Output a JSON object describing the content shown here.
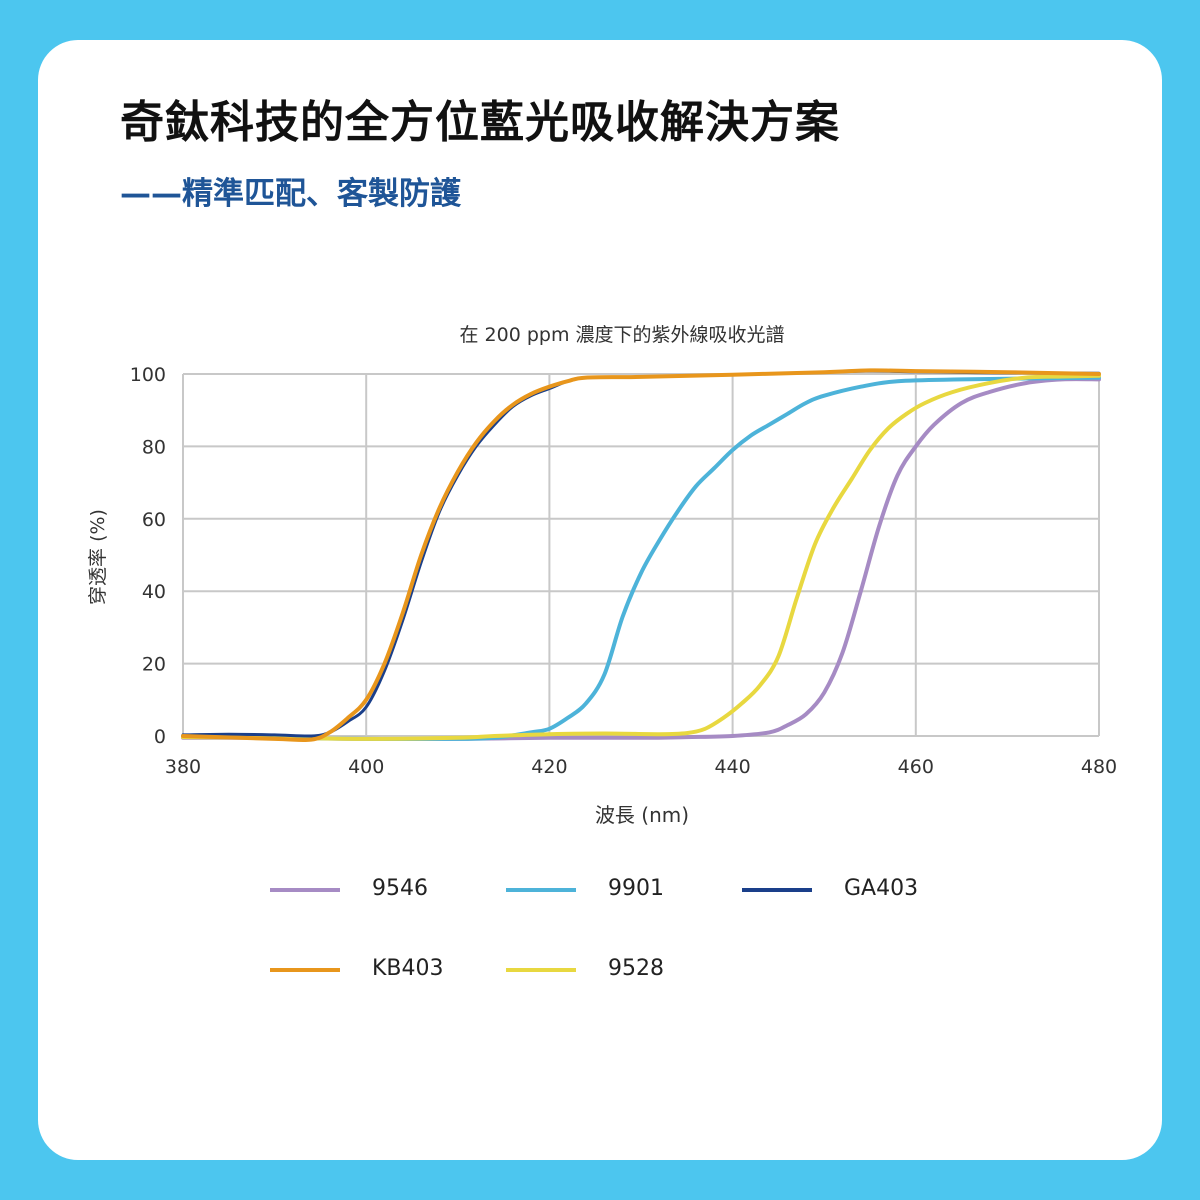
{
  "header": {
    "title": "奇鈦科技的全方位藍光吸收解決方案",
    "subtitle": "——精準匹配、客製防護"
  },
  "colors": {
    "background": "#4cc6ef",
    "card": "#ffffff",
    "title": "#111111",
    "subtitle": "#1f5597",
    "grid": "#c8c8c8"
  },
  "chart_data": {
    "type": "line",
    "title": "在 200 ppm 濃度下的紫外線吸收光譜",
    "xlabel": "波長 (nm)",
    "ylabel": "穿透率 (%)",
    "xlim": [
      380,
      480
    ],
    "ylim": [
      0,
      100
    ],
    "x_ticks": [
      "380",
      "400",
      "420",
      "440",
      "460",
      "480"
    ],
    "y_ticks": [
      "0",
      "20",
      "40",
      "60",
      "80",
      "100"
    ],
    "grid": true,
    "legend_position": "bottom",
    "series": [
      {
        "name": "9546",
        "color": "#a68bc4",
        "points": [
          [
            380,
            -0.5
          ],
          [
            390,
            -0.5
          ],
          [
            400,
            -0.8
          ],
          [
            410,
            -0.8
          ],
          [
            420,
            -0.5
          ],
          [
            430,
            -0.5
          ],
          [
            435,
            -0.3
          ],
          [
            440,
            0
          ],
          [
            444,
            1
          ],
          [
            446,
            3
          ],
          [
            448,
            6
          ],
          [
            450,
            12
          ],
          [
            452,
            23
          ],
          [
            454,
            40
          ],
          [
            456,
            58
          ],
          [
            458,
            72
          ],
          [
            460,
            80
          ],
          [
            462,
            86
          ],
          [
            465,
            92
          ],
          [
            468,
            95
          ],
          [
            472,
            97.5
          ],
          [
            476,
            98.5
          ],
          [
            480,
            98.5
          ]
        ]
      },
      {
        "name": "9901",
        "color": "#4db3d9",
        "points": [
          [
            380,
            0
          ],
          [
            390,
            -0.5
          ],
          [
            400,
            -0.8
          ],
          [
            410,
            -0.8
          ],
          [
            414,
            -0.5
          ],
          [
            418,
            1
          ],
          [
            420,
            2
          ],
          [
            422,
            5
          ],
          [
            424,
            9
          ],
          [
            426,
            17
          ],
          [
            428,
            33
          ],
          [
            430,
            45
          ],
          [
            432,
            54
          ],
          [
            434,
            62
          ],
          [
            436,
            69
          ],
          [
            438,
            74
          ],
          [
            440,
            79
          ],
          [
            442,
            83
          ],
          [
            444,
            86
          ],
          [
            446,
            89
          ],
          [
            448,
            92
          ],
          [
            450,
            94
          ],
          [
            454,
            96.5
          ],
          [
            458,
            98
          ],
          [
            465,
            98.5
          ],
          [
            480,
            99
          ]
        ]
      },
      {
        "name": "GA403",
        "color": "#1a3f8a",
        "points": [
          [
            380,
            0.3
          ],
          [
            385,
            0.5
          ],
          [
            390,
            0.3
          ],
          [
            394,
            0
          ],
          [
            396,
            1
          ],
          [
            398,
            4
          ],
          [
            400,
            8
          ],
          [
            402,
            18
          ],
          [
            404,
            32
          ],
          [
            406,
            48
          ],
          [
            408,
            62
          ],
          [
            410,
            72
          ],
          [
            412,
            80
          ],
          [
            414,
            86
          ],
          [
            416,
            91
          ],
          [
            418,
            94
          ],
          [
            420,
            96
          ],
          [
            422,
            98
          ],
          [
            424,
            99
          ],
          [
            430,
            99.2
          ],
          [
            440,
            99.8
          ],
          [
            450,
            100.5
          ],
          [
            455,
            100.8
          ],
          [
            460,
            100.6
          ],
          [
            470,
            100.3
          ],
          [
            480,
            100.2
          ]
        ]
      },
      {
        "name": "KB403",
        "color": "#e8961c",
        "points": [
          [
            380,
            0
          ],
          [
            390,
            -0.8
          ],
          [
            394,
            -1
          ],
          [
            396,
            1
          ],
          [
            398,
            5
          ],
          [
            400,
            10
          ],
          [
            402,
            20
          ],
          [
            404,
            34
          ],
          [
            406,
            50
          ],
          [
            408,
            63
          ],
          [
            410,
            73
          ],
          [
            412,
            81
          ],
          [
            414,
            87
          ],
          [
            416,
            91.5
          ],
          [
            418,
            94.5
          ],
          [
            420,
            96.5
          ],
          [
            422,
            98
          ],
          [
            424,
            99
          ],
          [
            430,
            99.2
          ],
          [
            440,
            99.8
          ],
          [
            450,
            100.5
          ],
          [
            455,
            101
          ],
          [
            460,
            100.8
          ],
          [
            470,
            100.5
          ],
          [
            480,
            100
          ]
        ]
      },
      {
        "name": "9528",
        "color": "#e8d840",
        "points": [
          [
            380,
            -0.3
          ],
          [
            390,
            -0.5
          ],
          [
            400,
            -0.8
          ],
          [
            410,
            -0.5
          ],
          [
            414,
            0
          ],
          [
            420,
            0.5
          ],
          [
            426,
            0.7
          ],
          [
            432,
            0.5
          ],
          [
            435,
            0.8
          ],
          [
            437,
            2
          ],
          [
            439,
            5
          ],
          [
            441,
            9
          ],
          [
            443,
            14
          ],
          [
            445,
            22
          ],
          [
            447,
            38
          ],
          [
            449,
            53
          ],
          [
            451,
            63
          ],
          [
            453,
            71
          ],
          [
            455,
            79
          ],
          [
            457,
            85
          ],
          [
            459,
            89
          ],
          [
            461,
            92
          ],
          [
            464,
            95
          ],
          [
            468,
            97.5
          ],
          [
            472,
            99
          ],
          [
            476,
            99.3
          ],
          [
            480,
            99.5
          ]
        ]
      }
    ]
  }
}
